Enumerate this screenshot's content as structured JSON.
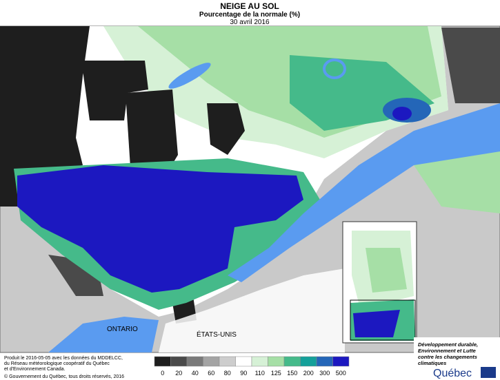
{
  "header": {
    "title": "NEIGE AU SOL",
    "subtitle": "Pourcentage de la normale (%)",
    "date": "30 avril 2016"
  },
  "map": {
    "labels": {
      "ontario": "ONTARIO",
      "usa": "ÉTATS-UNIS"
    }
  },
  "legend": {
    "items": [
      {
        "label": 0,
        "color": "#1e1e1e"
      },
      {
        "label": 20,
        "color": "#4a4a4a"
      },
      {
        "label": 40,
        "color": "#7a7a7a"
      },
      {
        "label": 60,
        "color": "#a4a4a4"
      },
      {
        "label": 80,
        "color": "#cdcdcd"
      },
      {
        "label": 90,
        "color": "#ffffff"
      },
      {
        "label": 110,
        "color": "#d6f1d6"
      },
      {
        "label": 125,
        "color": "#a6dfa6"
      },
      {
        "label": 150,
        "color": "#45ba8a"
      },
      {
        "label": 200,
        "color": "#14a09a"
      },
      {
        "label": 300,
        "color": "#2466b8"
      },
      {
        "label": 500,
        "color": "#1c18c0"
      }
    ]
  },
  "footer": {
    "lines": [
      "Produit le 2016-05-05 avec les données du MDDELCC,",
      "du Réseau météorologique coopératif du Québec",
      "et d'Environnement Canada."
    ],
    "copyright": "© Gouvernement du Québec, tous droits réservés, 2016"
  },
  "logo": {
    "lines": [
      "Développement durable,",
      "Environnement et Lutte",
      "contre les changements",
      "climatiques"
    ],
    "name": "Québec"
  }
}
